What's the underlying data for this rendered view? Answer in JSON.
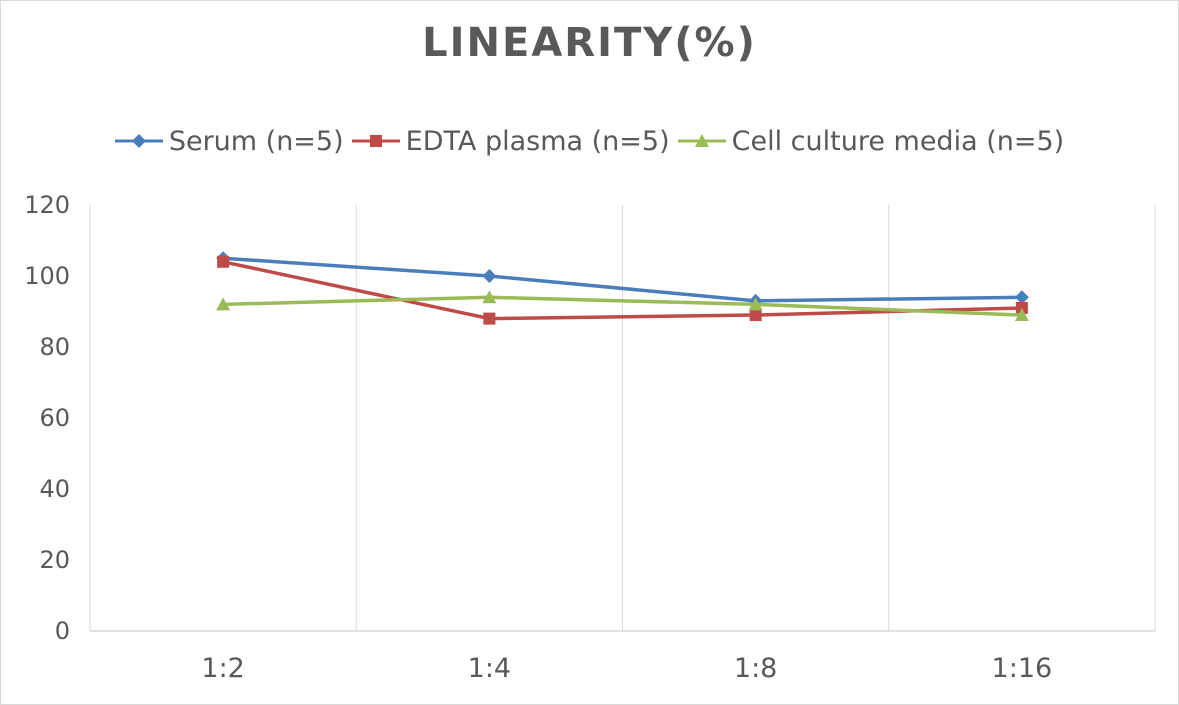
{
  "chart_data": {
    "type": "line",
    "title": "LINEARITY(%)",
    "xlabel": "",
    "ylabel": "",
    "categories": [
      "1:2",
      "1:4",
      "1:8",
      "1:16"
    ],
    "ylim": [
      0,
      120
    ],
    "yticks": [
      "0",
      "20",
      "40",
      "60",
      "80",
      "100",
      "120"
    ],
    "grid": "vertical",
    "legend_position": "top",
    "series": [
      {
        "name": "Serum (n=5)",
        "values": [
          105,
          100,
          93,
          94
        ],
        "color": "#4a7ebb",
        "marker": "diamond"
      },
      {
        "name": "EDTA plasma (n=5)",
        "values": [
          104,
          88,
          89,
          91
        ],
        "color": "#be4b48",
        "marker": "square"
      },
      {
        "name": "Cell culture media (n=5)",
        "values": [
          92,
          94,
          92,
          89
        ],
        "color": "#9bbb59",
        "marker": "triangle"
      }
    ]
  }
}
